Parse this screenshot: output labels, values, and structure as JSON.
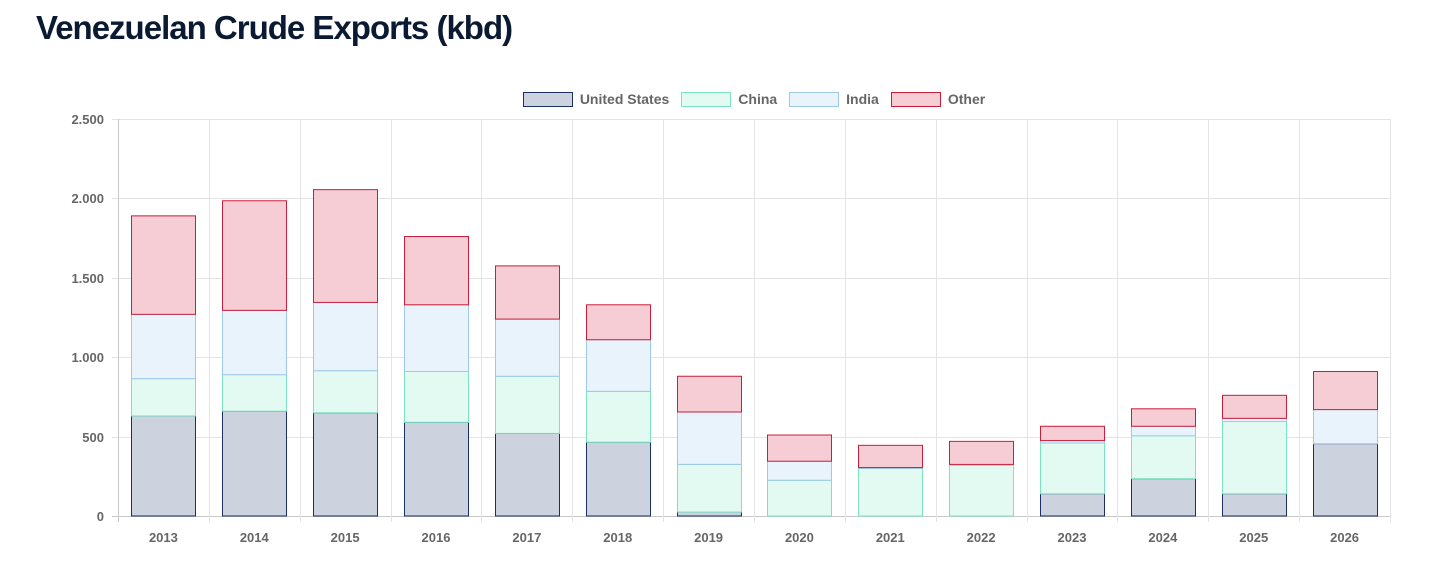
{
  "page": {
    "title": "Venezuelan Crude Exports (kbd)"
  },
  "chart_data": {
    "type": "bar",
    "stacked": true,
    "title": "Venezuelan Crude Exports (kbd)",
    "xlabel": "",
    "ylabel": "",
    "ylim": [
      0,
      2500
    ],
    "y_ticks": [
      0,
      500,
      1000,
      1500,
      2000,
      2500
    ],
    "y_tick_labels": [
      "0",
      "500",
      "1.000",
      "1.500",
      "2.000",
      "2.500"
    ],
    "grid": true,
    "legend_position": "top",
    "categories": [
      "2013",
      "2014",
      "2015",
      "2016",
      "2017",
      "2018",
      "2019",
      "2020",
      "2021",
      "2022",
      "2023",
      "2024",
      "2025",
      "2026"
    ],
    "series": [
      {
        "name": "United States",
        "fill": "#cdd2df",
        "stroke": "#1c2f66",
        "values": [
          630,
          660,
          650,
          590,
          520,
          465,
          25,
          0,
          0,
          0,
          140,
          235,
          140,
          455
        ]
      },
      {
        "name": "China",
        "fill": "#e2faf2",
        "stroke": "#7ae3c2",
        "values": [
          235,
          230,
          265,
          320,
          360,
          320,
          300,
          225,
          300,
          320,
          320,
          270,
          455,
          0
        ]
      },
      {
        "name": "India",
        "fill": "#e9f3fc",
        "stroke": "#9ec9e8",
        "values": [
          405,
          405,
          430,
          420,
          360,
          325,
          330,
          120,
          5,
          5,
          15,
          60,
          20,
          215
        ]
      },
      {
        "name": "Other",
        "fill": "#f6cdd5",
        "stroke": "#c81e3a",
        "values": [
          620,
          690,
          710,
          430,
          335,
          220,
          225,
          165,
          140,
          145,
          90,
          110,
          145,
          240
        ]
      }
    ]
  }
}
